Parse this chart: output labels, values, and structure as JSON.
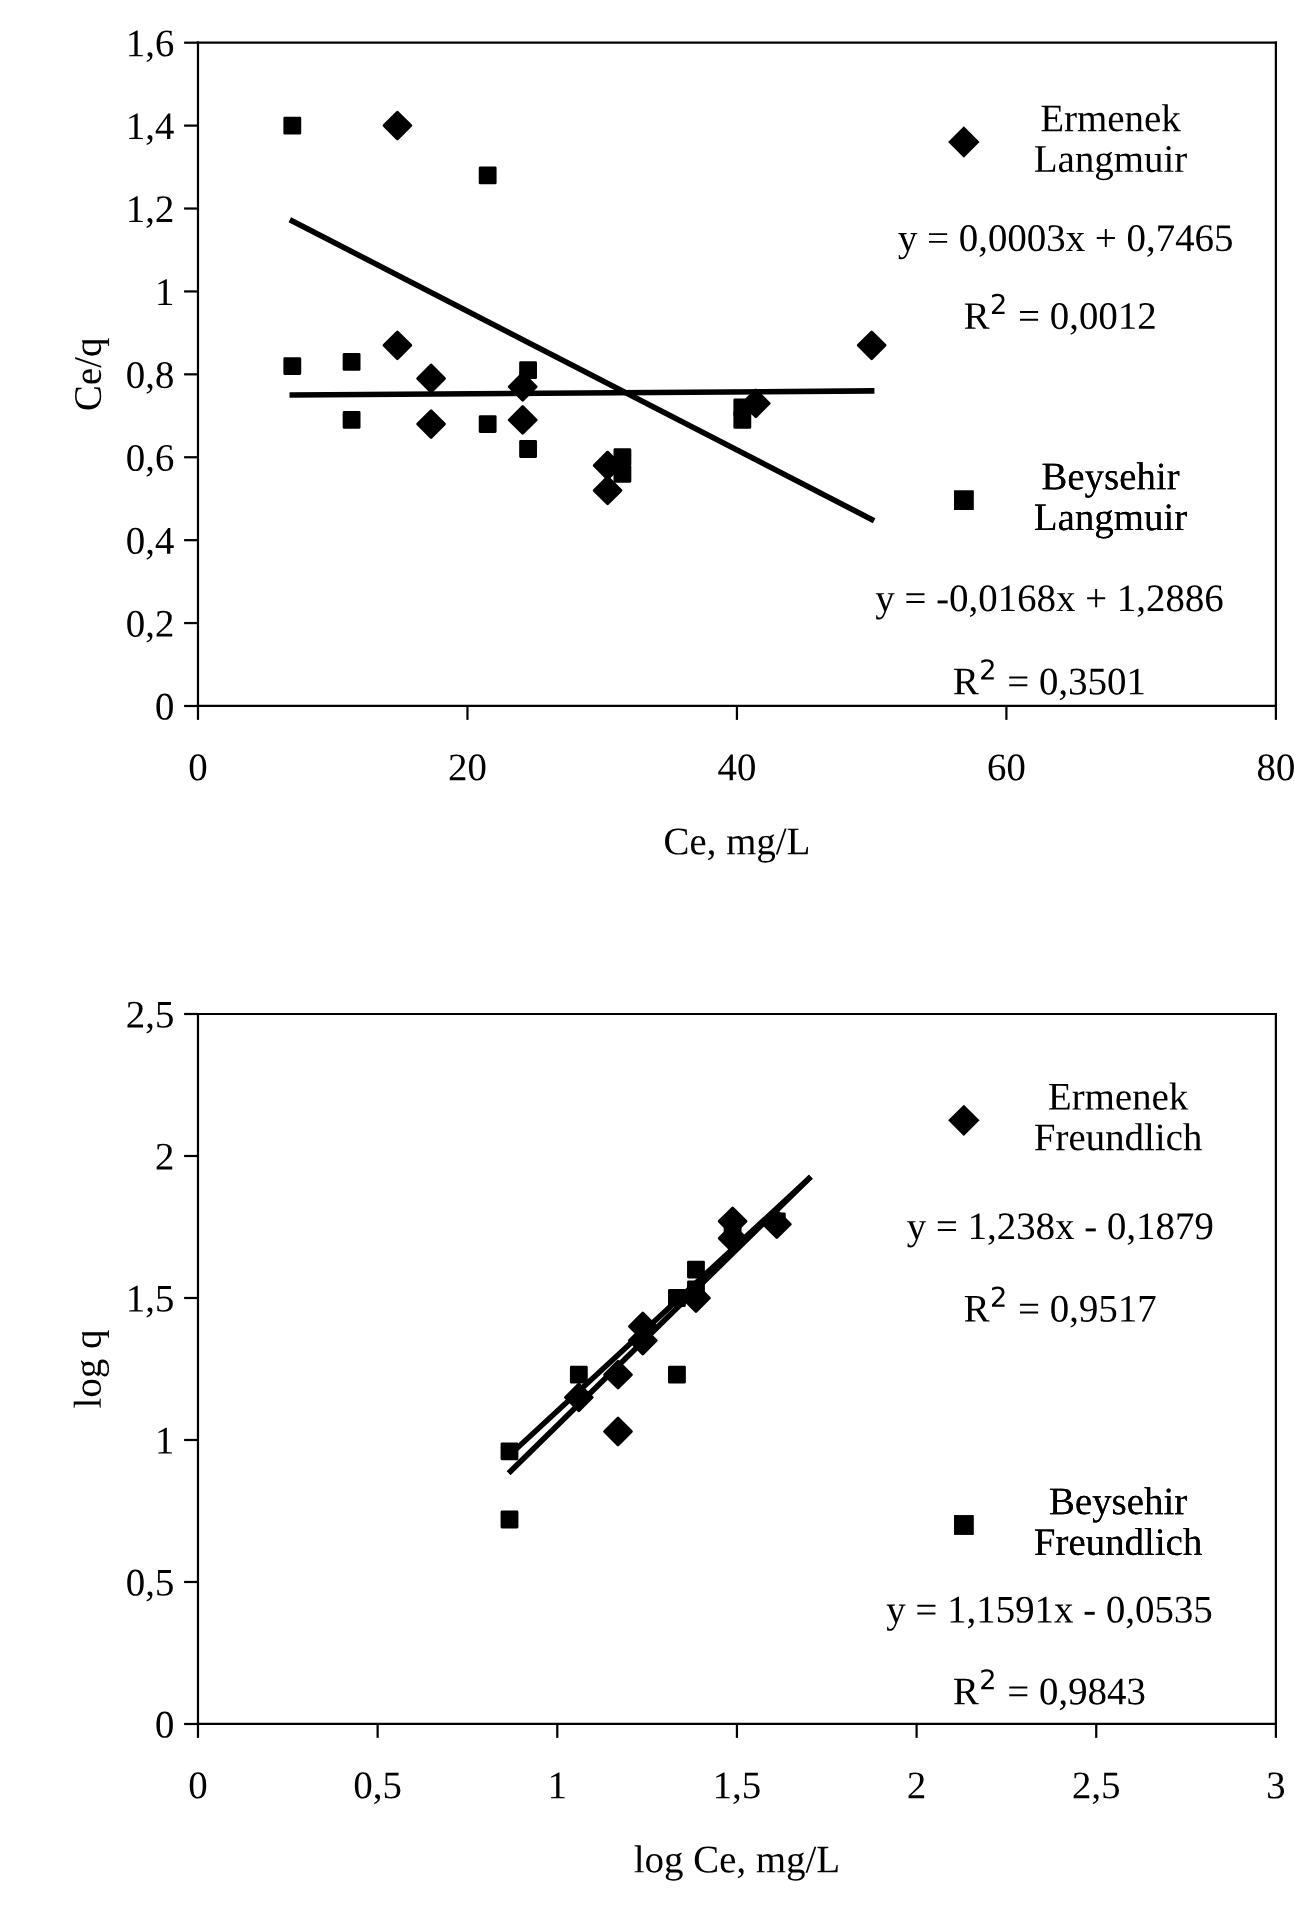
{
  "chart_data": [
    {
      "type": "scatter",
      "xlabel": "Ce, mg/L",
      "ylabel": "Ce/q",
      "legend": "right",
      "grid": false,
      "xlim": [
        0,
        80
      ],
      "xticks": [
        0,
        20,
        40,
        60,
        80
      ],
      "ylim": [
        0,
        1.6
      ],
      "yticks": [
        0,
        {
          "value": 0.2,
          "label": "0,2"
        },
        {
          "value": 0.4,
          "label": "0,4"
        },
        {
          "value": 0.6,
          "label": "0,6"
        },
        {
          "value": 0.8,
          "label": "0,8"
        },
        1,
        {
          "value": 1.2,
          "label": "1,2"
        },
        {
          "value": 1.4,
          "label": "1,4"
        },
        {
          "value": 1.6,
          "label": "1,6"
        }
      ],
      "series": [
        {
          "name": "Ermenek Langmuir",
          "marker": "diamond",
          "color": "#000000",
          "x": [
            14.8,
            14.8,
            17.3,
            17.3,
            24.1,
            24.1,
            30.4,
            30.4,
            41.4,
            50
          ],
          "values": [
            1.4,
            0.87,
            0.79,
            0.68,
            0.77,
            0.69,
            0.58,
            0.52,
            0.73,
            0.87
          ]
        },
        {
          "name": "Beysehir Langmuir",
          "marker": "square",
          "color": "#000000",
          "x": [
            7,
            7,
            11.4,
            11.4,
            21.5,
            21.5,
            24.5,
            24.5,
            31.5,
            31.5,
            40.4,
            40.4
          ],
          "values": [
            1.4,
            0.82,
            0.83,
            0.69,
            1.28,
            0.68,
            0.81,
            0.62,
            0.6,
            0.56,
            0.69,
            0.72
          ]
        },
        {
          "type": "line",
          "marker": "none",
          "color": "#000000",
          "x": [
            7,
            50
          ],
          "values": [
            0.75,
            0.76
          ]
        },
        {
          "type": "line",
          "marker": "none",
          "color": "#000000",
          "x": [
            7,
            50
          ],
          "values": [
            1.17,
            0.45
          ]
        }
      ],
      "annotations": [
        "y = 0,0003x + 0,7465",
        "R$^{2}$ = 0,0012",
        "y = -0,0168x + 1,2886",
        "R$^{2}$ = 0,3501"
      ]
    },
    {
      "type": "scatter",
      "xlabel": "log Ce, mg/L",
      "ylabel": "log q",
      "legend": "right",
      "grid": false,
      "xlim": [
        0,
        3
      ],
      "xticks": [
        0,
        {
          "value": 0.5,
          "label": "0,5"
        },
        1,
        {
          "value": 1.5,
          "label": "1,5"
        },
        2,
        {
          "value": 2.5,
          "label": "2,5"
        },
        3
      ],
      "ylim": [
        0,
        2.5
      ],
      "yticks": [
        0,
        {
          "value": 0.5,
          "label": "0,5"
        },
        1,
        {
          "value": 1.5,
          "label": "1,5"
        },
        2,
        {
          "value": 2.5,
          "label": "2,5"
        }
      ],
      "series": [
        {
          "name": "Ermenek Freundlich",
          "marker": "diamond",
          "color": "#000000",
          "x": [
            1.06,
            1.169,
            1.169,
            1.238,
            1.238,
            1.386,
            1.488,
            1.488,
            1.611
          ],
          "values": [
            1.15,
            1.23,
            1.03,
            1.4,
            1.35,
            1.5,
            1.77,
            1.71,
            1.76
          ]
        },
        {
          "name": "Beysehir Freundlich",
          "marker": "square",
          "color": "#000000",
          "x": [
            0.867,
            0.867,
            1.06,
            1.333,
            1.333,
            1.386,
            1.386,
            1.488,
            1.611
          ],
          "values": [
            0.96,
            0.72,
            1.23,
            1.23,
            1.5,
            1.6,
            1.53,
            1.74,
            1.77
          ]
        },
        {
          "type": "line",
          "marker": "none",
          "color": "#000000",
          "x": [
            0.87,
            1.7
          ],
          "values": [
            0.89,
            1.92
          ]
        },
        {
          "type": "line",
          "marker": "none",
          "color": "#000000",
          "x": [
            0.87,
            1.7
          ],
          "values": [
            0.95,
            1.92
          ]
        }
      ],
      "annotations": [
        "y = 1,238x - 0,1879",
        "R$^{2}$ = 0,9517",
        "y = 1,1591x - 0,0535",
        "R$^{2}$ = 0,9843"
      ]
    }
  ]
}
